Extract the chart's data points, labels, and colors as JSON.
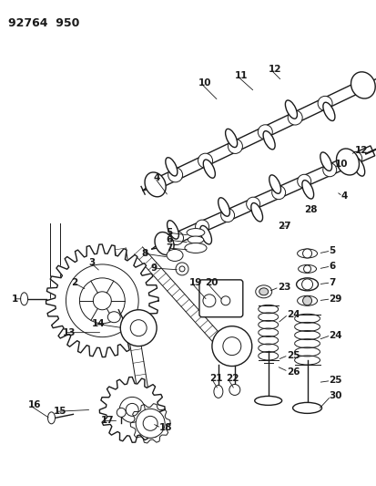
{
  "title": "92764  950",
  "bg": "#ffffff",
  "lc": "#1a1a1a",
  "fig_w": 4.14,
  "fig_h": 5.33,
  "dpi": 100
}
